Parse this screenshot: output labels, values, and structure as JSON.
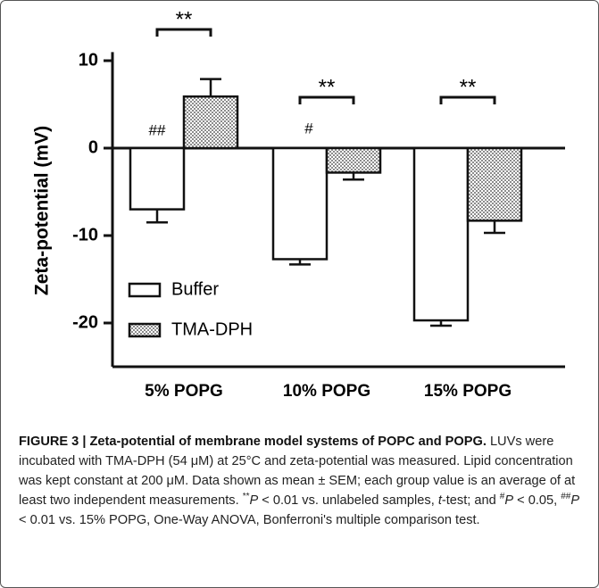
{
  "chart_data": {
    "type": "bar",
    "ylabel": "Zeta-potential (mV)",
    "categories": [
      "5% POPG",
      "10% POPG",
      "15% POPG"
    ],
    "series": [
      {
        "name": "Buffer",
        "color": "#ffffff",
        "values": [
          -7.0,
          -12.7,
          -19.7
        ],
        "errors": [
          1.5,
          0.6,
          0.6
        ]
      },
      {
        "name": "TMA-DPH",
        "color": "#8c8c8c",
        "values": [
          5.9,
          -2.8,
          -8.3
        ],
        "errors": [
          2.0,
          0.8,
          1.4
        ]
      }
    ],
    "ylim": [
      -25,
      12
    ],
    "yticks": [
      -20,
      -10,
      0,
      10
    ],
    "annotations": [
      "**",
      "**",
      "**",
      "##",
      "#"
    ],
    "legend": "lower left"
  },
  "caption": [
    "FIGURE 3 | Zeta-potential of membrane model systems of POPC and POPG.",
    " LUVs were incubated with TMA-DPH (54 μM) at 25°C and zeta-potential was measured. Lipid concentration was kept constant at 200 μM. Data shown as mean ± SEM; each group value is an average of at least two independent measurements. ",
    "**",
    "P",
    " < 0.01 vs. unlabeled samples, ",
    "t",
    "-test; and ",
    "#",
    "P",
    " < 0.05, ",
    "##",
    "P",
    " < 0.01 vs. 15% POPG, One-Way ANOVA, Bonferroni's multiple comparison test."
  ]
}
